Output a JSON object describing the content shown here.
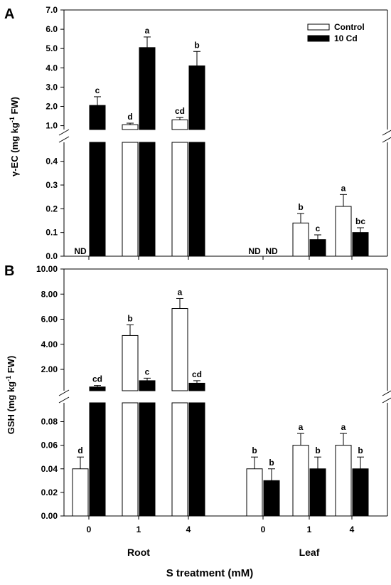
{
  "chart_data": [
    {
      "type": "bar",
      "panel": "A",
      "ylabel_main": "γ-EC (mg kg",
      "ylabel_sup": "-1",
      "ylabel_tail": " FW)",
      "y_break": true,
      "lower_ylim": [
        0,
        0.48
      ],
      "lower_ticks": [
        "0.0",
        "0.1",
        "0.2",
        "0.3",
        "0.4"
      ],
      "upper_ylim": [
        0.8,
        7.0
      ],
      "upper_ticks": [
        "1.0",
        "2.0",
        "3.0",
        "4.0",
        "5.0",
        "6.0",
        "7.0"
      ],
      "legend": {
        "position": "top-right",
        "entries": [
          "Control",
          "10 Cd"
        ]
      },
      "series": [
        {
          "name": "Control",
          "values": [
            null,
            1.05,
            1.3,
            null,
            0.14,
            0.21
          ],
          "errors": [
            null,
            0.08,
            0.12,
            null,
            0.04,
            0.05
          ],
          "letters": [
            "ND",
            "d",
            "cd",
            "ND",
            "b",
            "a"
          ]
        },
        {
          "name": "10 Cd",
          "values": [
            2.05,
            5.05,
            4.1,
            null,
            0.07,
            0.1
          ],
          "errors": [
            0.45,
            0.55,
            0.75,
            null,
            0.02,
            0.02
          ],
          "letters": [
            "c",
            "a",
            "b",
            "ND",
            "c",
            "bc"
          ]
        }
      ]
    },
    {
      "type": "bar",
      "panel": "B",
      "ylabel_main": "GSH (mg kg",
      "ylabel_sup": "-1",
      "ylabel_tail": " FW)",
      "y_break": true,
      "lower_ylim": [
        0,
        0.096
      ],
      "lower_ticks": [
        "0.00",
        "0.02",
        "0.04",
        "0.06",
        "0.08"
      ],
      "upper_ylim": [
        0.3,
        10.0
      ],
      "upper_ticks": [
        "2.00",
        "4.00",
        "6.00",
        "8.00",
        "10.00"
      ],
      "series": [
        {
          "name": "Control",
          "values": [
            0.04,
            4.7,
            6.85,
            0.04,
            0.06,
            0.06
          ],
          "errors": [
            0.01,
            0.85,
            0.8,
            0.01,
            0.01,
            0.01
          ],
          "letters": [
            "d",
            "b",
            "a",
            "b",
            "a",
            "a"
          ]
        },
        {
          "name": "10 Cd",
          "values": [
            0.6,
            1.1,
            0.9,
            0.03,
            0.04,
            0.04
          ],
          "errors": [
            0.12,
            0.2,
            0.2,
            0.01,
            0.01,
            0.01
          ],
          "letters": [
            "cd",
            "c",
            "cd",
            "b",
            "b",
            "b"
          ]
        }
      ]
    }
  ],
  "x_axis": {
    "categories": [
      "0",
      "1",
      "4",
      "0",
      "1",
      "4"
    ],
    "groups": [
      "Root",
      "Leaf"
    ],
    "title": "S treatment (mM)"
  }
}
